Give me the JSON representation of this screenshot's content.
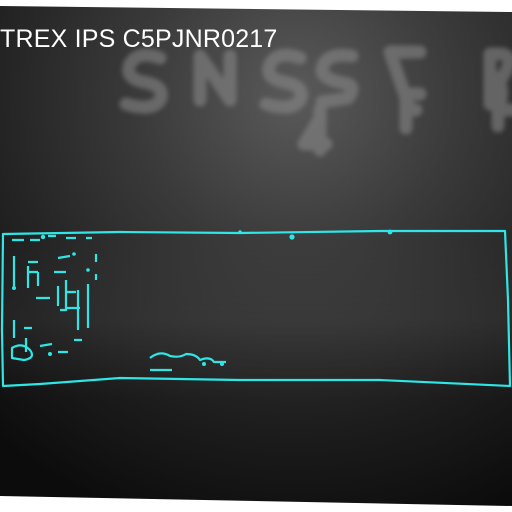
{
  "image": {
    "overlay_label": "TREX IPS C5PJNR0217",
    "outline_color": "#2ee6e6",
    "background_tone": "#161616"
  }
}
